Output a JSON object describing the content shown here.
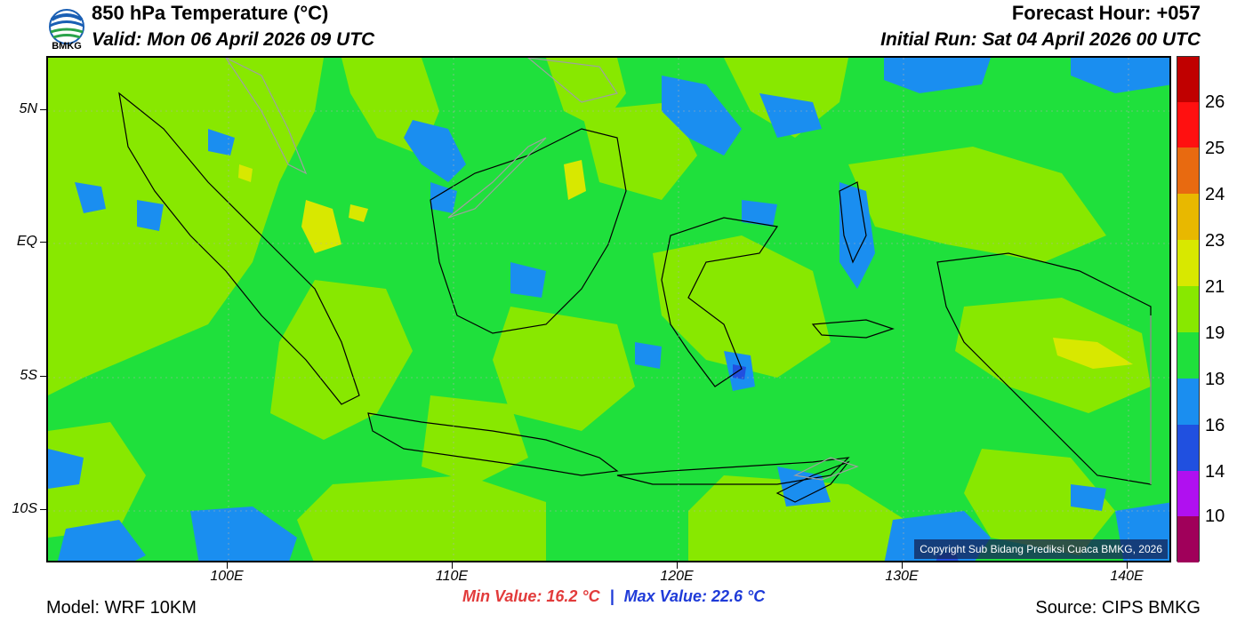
{
  "header": {
    "logo_text": "BMKG",
    "title": "850 hPa Temperature (°C)",
    "valid": "Valid: Mon 06 April 2026 09 UTC",
    "forecast_hour": "Forecast Hour: +057",
    "initial_run": "Initial Run: Sat 04 April 2026 00 UTC"
  },
  "map": {
    "lat_labels": [
      "5N",
      "EQ",
      "5S",
      "10S"
    ],
    "lon_labels": [
      "100E",
      "110E",
      "120E",
      "130E",
      "140E"
    ],
    "copyright": "Copyright Sub Bidang Prediksi Cuaca BMKG, 2026",
    "background_color": "#1fe03c"
  },
  "colorbar": {
    "labels": [
      "26",
      "25",
      "24",
      "23",
      "21",
      "19",
      "18",
      "16",
      "14",
      "10"
    ],
    "colors": [
      "#c00000",
      "#ff1010",
      "#e86a10",
      "#e8b800",
      "#d8e800",
      "#88e800",
      "#1fe03c",
      "#1a8ef0",
      "#2050e0",
      "#b010f0",
      "#a0005a"
    ]
  },
  "footer": {
    "min_label": "Min Value: 16.2 °C",
    "separator": "|",
    "max_label": "Max Value: 22.6 °C",
    "model": "Model: WRF 10KM",
    "source": "Source: CIPS BMKG"
  }
}
